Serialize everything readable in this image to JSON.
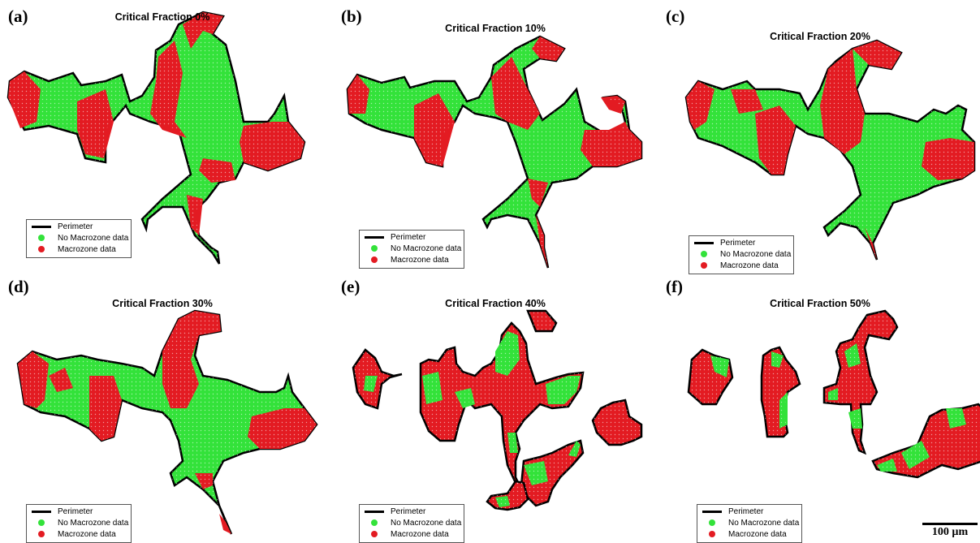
{
  "panels": [
    {
      "letter": "(a)",
      "title": "Critical Fraction 0%"
    },
    {
      "letter": "(b)",
      "title": "Critical Fraction 10%"
    },
    {
      "letter": "(c)",
      "title": "Critical Fraction 20%"
    },
    {
      "letter": "(d)",
      "title": "Critical Fraction 30%"
    },
    {
      "letter": "(e)",
      "title": "Critical Fraction 40%"
    },
    {
      "letter": "(f)",
      "title": "Critical Fraction 50%"
    }
  ],
  "legend": {
    "perimeter": "Perimeter",
    "no_macrozone": "No Macrozone data",
    "macrozone": "Macrozone data"
  },
  "colors": {
    "no_macrozone": "#33e23a",
    "macrozone": "#e31b22",
    "perimeter": "#000000"
  },
  "scale_bar": {
    "label": "100 µm"
  }
}
